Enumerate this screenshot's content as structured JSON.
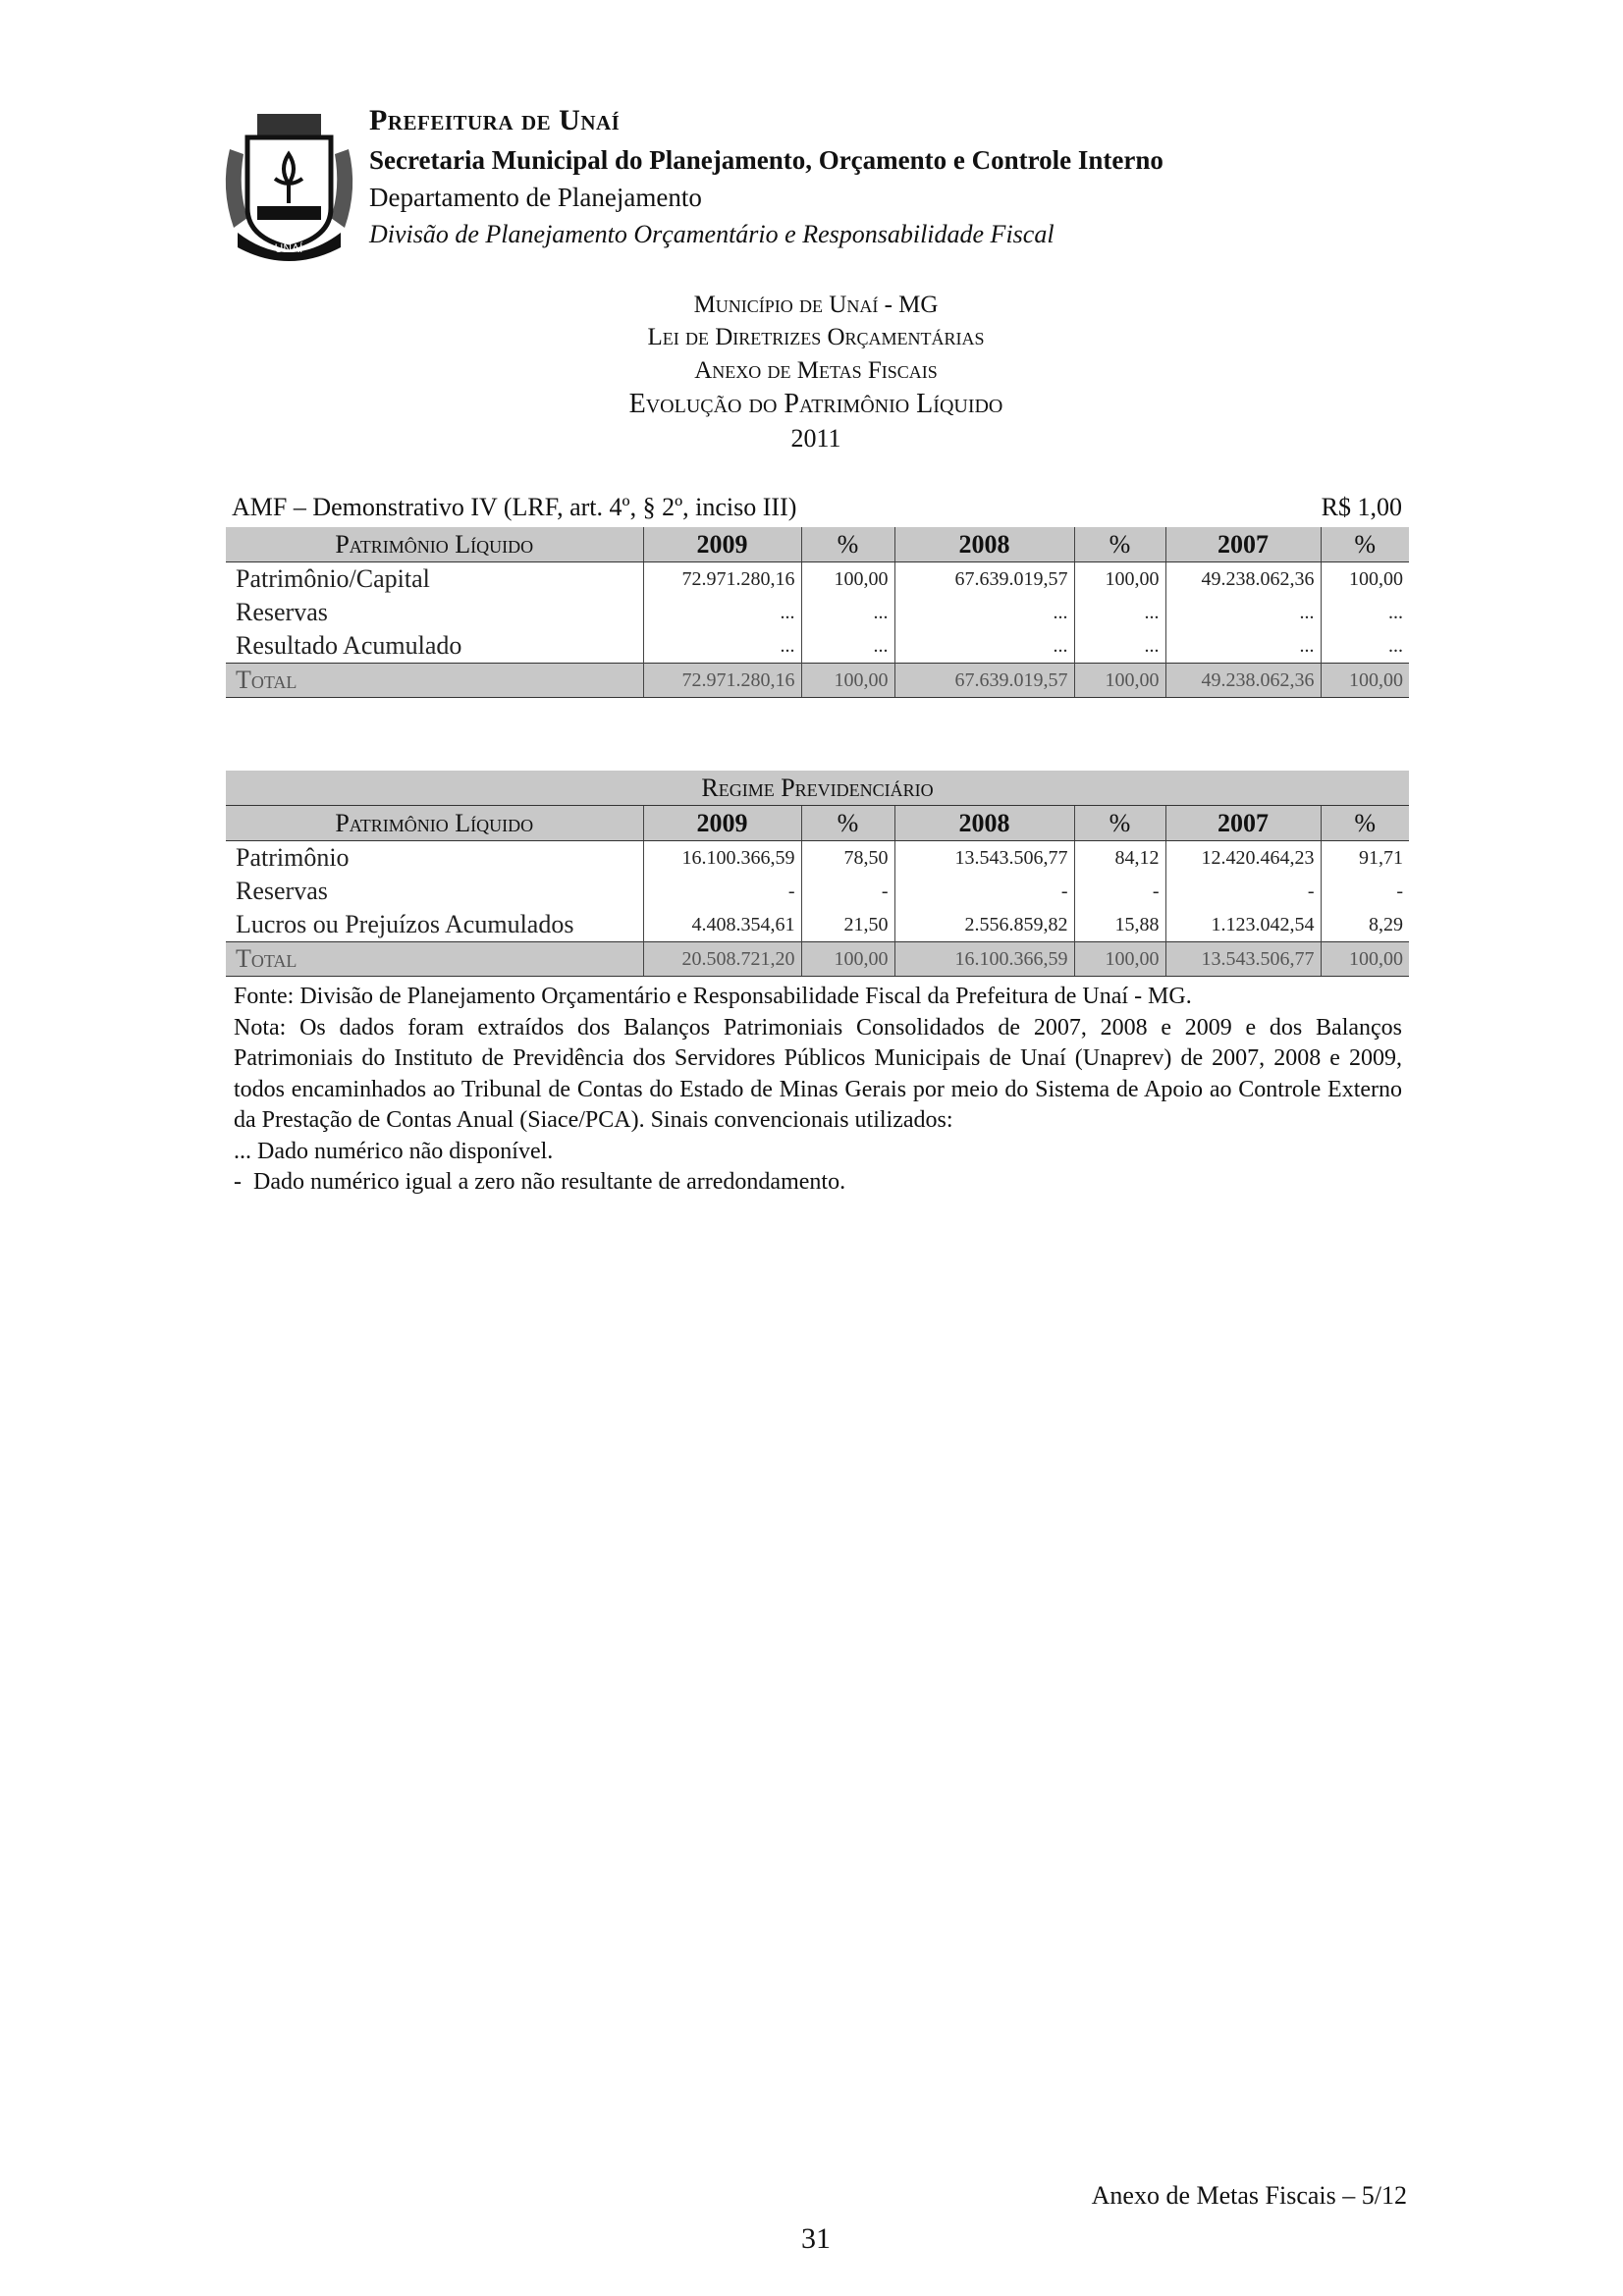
{
  "header": {
    "logo_text": "UNAÍ",
    "org": "Prefeitura de Unaí",
    "secretaria": "Secretaria Municipal do Planejamento, Orçamento e Controle Interno",
    "departamento": "Departamento de Planejamento",
    "divisao": "Divisão de Planejamento Orçamentário e Responsabilidade Fiscal"
  },
  "titles": {
    "municipio": "Município de Unaí - MG",
    "lei": "Lei de Diretrizes Orçamentárias",
    "anexo": "Anexo de Metas Fiscais",
    "evolucao": "Evolução do Patrimônio Líquido",
    "ano": "2011"
  },
  "demonstrativo": {
    "label": "AMF – Demonstrativo IV (LRF, art. 4º, § 2º, inciso III)",
    "unit": "R$ 1,00"
  },
  "table1": {
    "headers": [
      "Patrimônio Líquido",
      "2009",
      "%",
      "2008",
      "%",
      "2007",
      "%"
    ],
    "rows": [
      [
        "Patrimônio/Capital",
        "72.971.280,16",
        "100,00",
        "67.639.019,57",
        "100,00",
        "49.238.062,36",
        "100,00"
      ],
      [
        "Reservas",
        "...",
        "...",
        "...",
        "...",
        "...",
        "..."
      ],
      [
        "Resultado Acumulado",
        "...",
        "...",
        "...",
        "...",
        "...",
        "..."
      ]
    ],
    "total": [
      "Total",
      "72.971.280,16",
      "100,00",
      "67.639.019,57",
      "100,00",
      "49.238.062,36",
      "100,00"
    ]
  },
  "table2": {
    "title": "Regime Previdenciário",
    "headers": [
      "Patrimônio Líquido",
      "2009",
      "%",
      "2008",
      "%",
      "2007",
      "%"
    ],
    "rows": [
      [
        "Patrimônio",
        "16.100.366,59",
        "78,50",
        "13.543.506,77",
        "84,12",
        "12.420.464,23",
        "91,71"
      ],
      [
        "Reservas",
        "-",
        "-",
        "-",
        "-",
        "-",
        "-"
      ],
      [
        "Lucros ou Prejuízos Acumulados",
        "4.408.354,61",
        "21,50",
        "2.556.859,82",
        "15,88",
        "1.123.042,54",
        "8,29"
      ]
    ],
    "total": [
      "Total",
      "20.508.721,20",
      "100,00",
      "16.100.366,59",
      "100,00",
      "13.543.506,77",
      "100,00"
    ]
  },
  "notes": {
    "fonte": "Fonte: Divisão de Planejamento Orçamentário e Responsabilidade Fiscal da Prefeitura de Unaí - MG.",
    "nota": "Nota: Os dados foram extraídos dos Balanços Patrimoniais Consolidados de 2007, 2008 e 2009 e dos Balanços Patrimoniais do Instituto de Previdência dos Servidores Públicos Municipais de Unaí (Unaprev) de 2007, 2008 e 2009, todos encaminhados ao Tribunal de Contas do Estado de Minas Gerais por meio do Sistema de Apoio ao Controle Externo da Prestação de Contas Anual (Siace/PCA). Sinais convencionais utilizados:",
    "sinal1": "... Dado numérico não disponível.",
    "sinal2": "-  Dado numérico igual a zero não resultante de arredondamento."
  },
  "footer": {
    "annex": "Anexo de Metas Fiscais – 5/12",
    "page": "31"
  }
}
